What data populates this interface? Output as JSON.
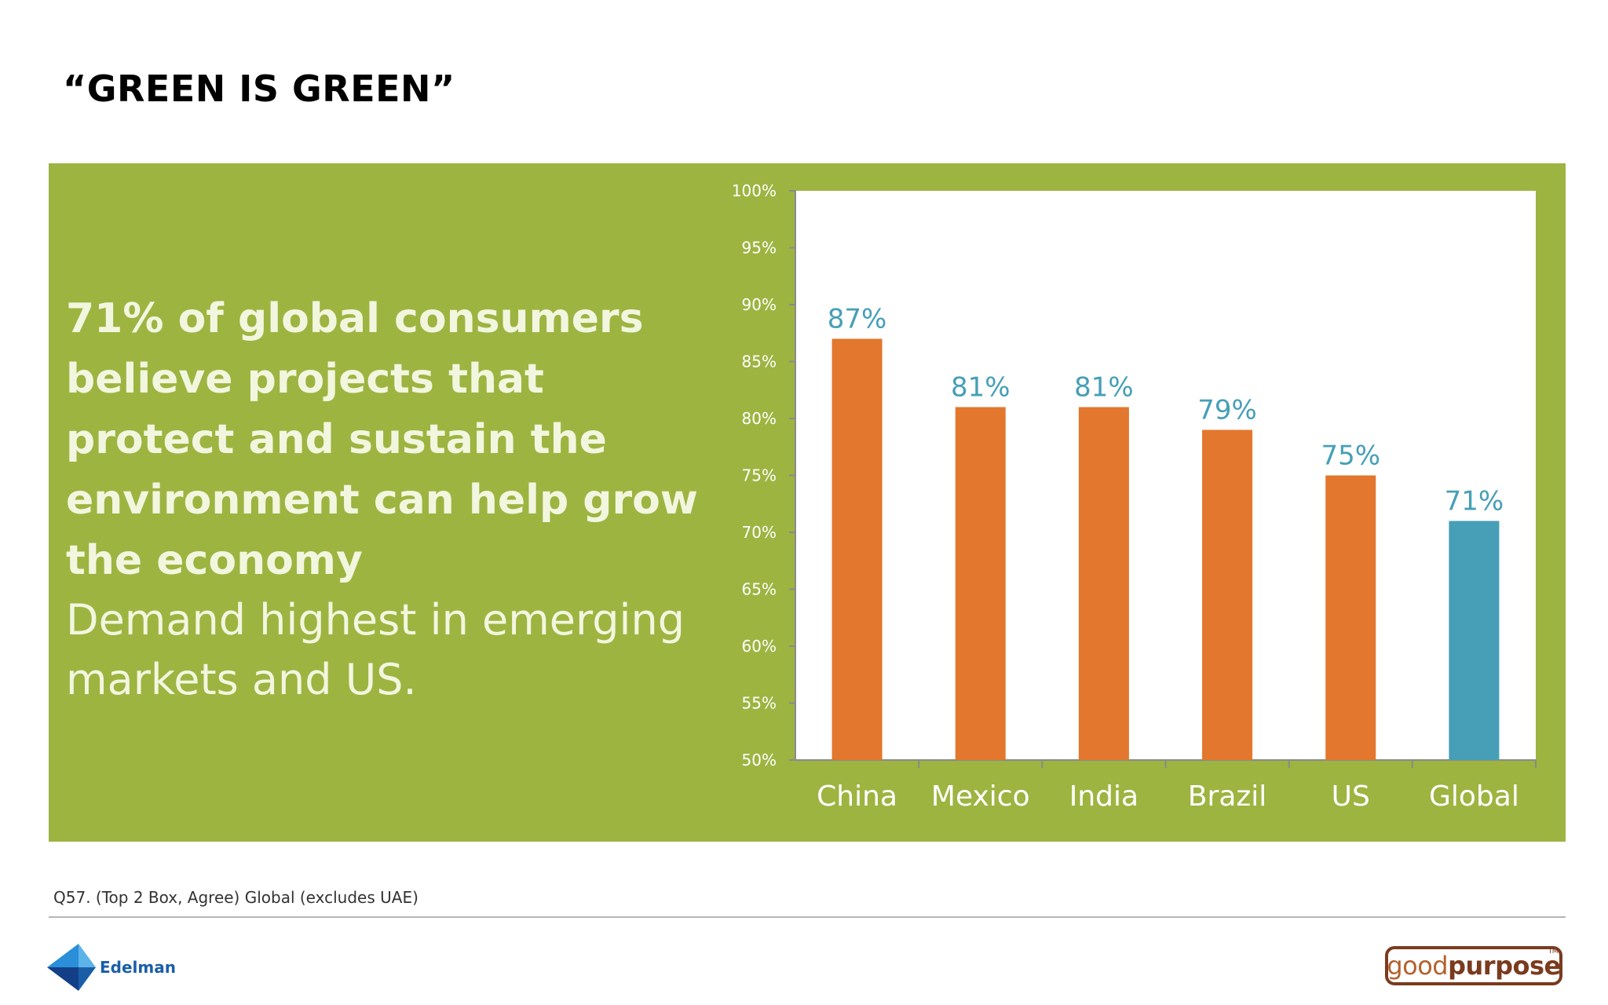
{
  "title": "“GREEN IS GREEN”",
  "headline": "71% of global consumers believe projects that protect and sustain the environment can help grow the economy",
  "subline": "Demand highest in emerging markets and US.",
  "footnote": "Q57. (Top 2 Box, Agree) Global (excludes UAE)",
  "logos": {
    "left": "Edelman",
    "right_part1": "good",
    "right_part2": "purpose",
    "right_tm": "TM"
  },
  "colors": {
    "panel_green": "#9db441",
    "bar_orange": "#e2772d",
    "bar_teal": "#469fb6",
    "label_teal": "#469fb6",
    "headline_text": "#f3f6df"
  },
  "chart_data": {
    "type": "bar",
    "categories": [
      "China",
      "Mexico",
      "India",
      "Brazil",
      "US",
      "Global"
    ],
    "values": [
      87,
      81,
      81,
      79,
      75,
      71
    ],
    "data_labels": [
      "87%",
      "81%",
      "81%",
      "79%",
      "75%",
      "71%"
    ],
    "highlight_index": 5,
    "ylim": [
      50,
      100
    ],
    "yticks": [
      50,
      55,
      60,
      65,
      70,
      75,
      80,
      85,
      90,
      95,
      100
    ],
    "ytick_labels": [
      "50%",
      "55%",
      "60%",
      "65%",
      "70%",
      "75%",
      "80%",
      "85%",
      "90%",
      "95%",
      "100%"
    ],
    "grid": false,
    "title": "",
    "xlabel": "",
    "ylabel": ""
  }
}
